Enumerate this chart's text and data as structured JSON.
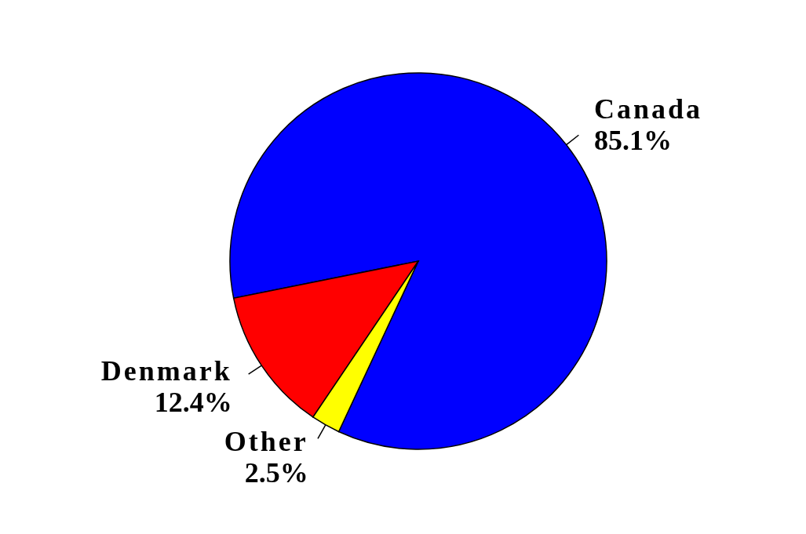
{
  "chart_data": {
    "type": "pie",
    "categories": [
      "Canada",
      "Denmark",
      "Other"
    ],
    "values": [
      85.1,
      12.4,
      2.5
    ],
    "value_labels": [
      "85.1%",
      "12.4%",
      "2.5%"
    ],
    "colors": [
      "#0000ff",
      "#ff0000",
      "#ffff00"
    ]
  }
}
